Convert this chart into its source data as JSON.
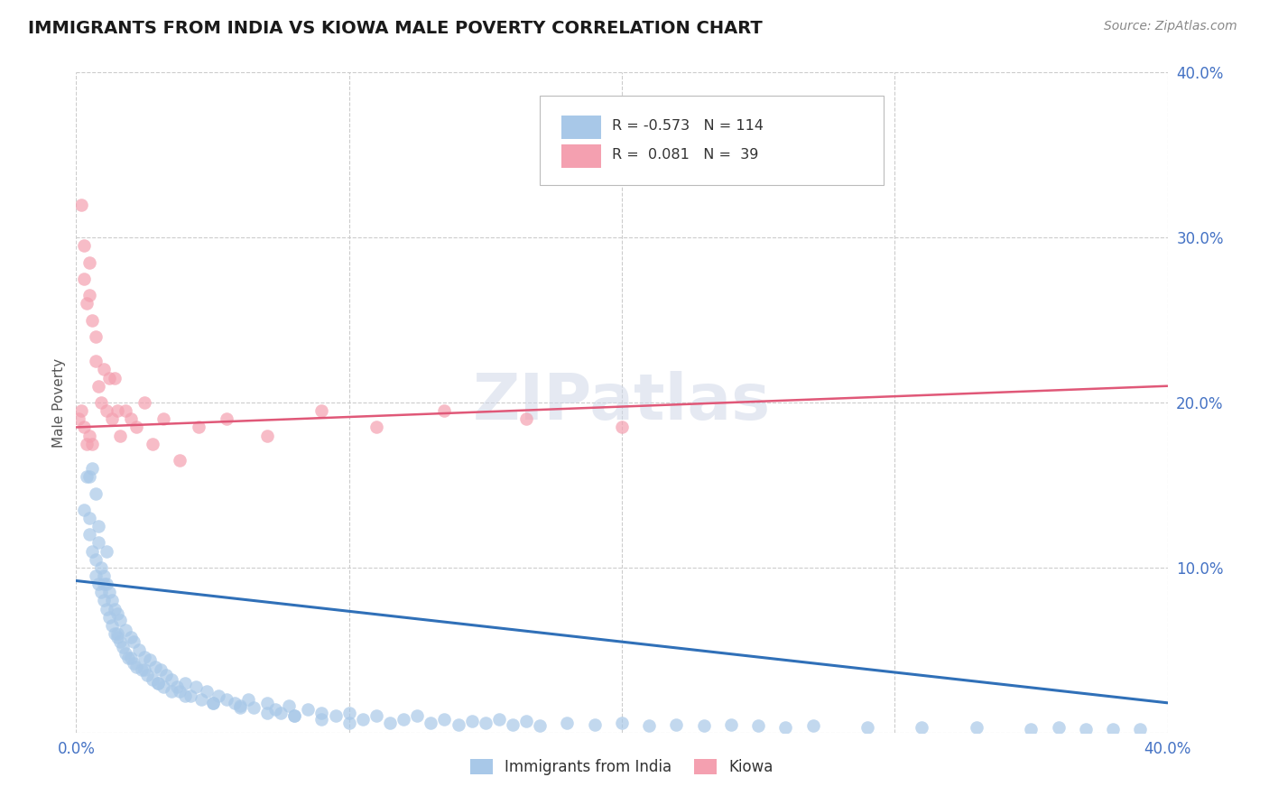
{
  "title": "IMMIGRANTS FROM INDIA VS KIOWA MALE POVERTY CORRELATION CHART",
  "source": "Source: ZipAtlas.com",
  "ylabel_label": "Male Poverty",
  "xlim": [
    0.0,
    0.4
  ],
  "ylim": [
    0.0,
    0.4
  ],
  "color_india": "#a8c8e8",
  "color_kiowa": "#f4a0b0",
  "line_color_india": "#3070b8",
  "line_color_kiowa": "#e05878",
  "background_color": "#ffffff",
  "india_line_start_y": 0.092,
  "india_line_end_y": 0.018,
  "kiowa_line_start_y": 0.185,
  "kiowa_line_end_y": 0.21,
  "india_scatter_x": [
    0.003,
    0.004,
    0.005,
    0.005,
    0.006,
    0.006,
    0.007,
    0.007,
    0.007,
    0.008,
    0.008,
    0.008,
    0.009,
    0.009,
    0.01,
    0.01,
    0.011,
    0.011,
    0.011,
    0.012,
    0.012,
    0.013,
    0.013,
    0.014,
    0.014,
    0.015,
    0.015,
    0.016,
    0.016,
    0.017,
    0.018,
    0.018,
    0.019,
    0.02,
    0.021,
    0.021,
    0.022,
    0.023,
    0.024,
    0.025,
    0.026,
    0.027,
    0.028,
    0.029,
    0.03,
    0.031,
    0.032,
    0.033,
    0.035,
    0.037,
    0.038,
    0.04,
    0.042,
    0.044,
    0.046,
    0.048,
    0.05,
    0.052,
    0.055,
    0.058,
    0.06,
    0.063,
    0.065,
    0.07,
    0.073,
    0.075,
    0.078,
    0.08,
    0.085,
    0.09,
    0.095,
    0.1,
    0.105,
    0.11,
    0.115,
    0.12,
    0.125,
    0.13,
    0.135,
    0.14,
    0.145,
    0.15,
    0.155,
    0.16,
    0.165,
    0.17,
    0.18,
    0.19,
    0.2,
    0.21,
    0.22,
    0.23,
    0.24,
    0.25,
    0.26,
    0.27,
    0.29,
    0.31,
    0.33,
    0.35,
    0.36,
    0.37,
    0.38,
    0.39,
    0.005,
    0.01,
    0.015,
    0.02,
    0.025,
    0.03,
    0.035,
    0.04,
    0.05,
    0.06,
    0.07,
    0.08,
    0.09,
    0.1
  ],
  "india_scatter_y": [
    0.135,
    0.155,
    0.12,
    0.13,
    0.11,
    0.16,
    0.095,
    0.105,
    0.145,
    0.09,
    0.115,
    0.125,
    0.085,
    0.1,
    0.08,
    0.095,
    0.075,
    0.09,
    0.11,
    0.07,
    0.085,
    0.065,
    0.08,
    0.06,
    0.075,
    0.058,
    0.072,
    0.055,
    0.068,
    0.052,
    0.048,
    0.062,
    0.045,
    0.058,
    0.042,
    0.055,
    0.04,
    0.05,
    0.038,
    0.046,
    0.035,
    0.044,
    0.032,
    0.04,
    0.03,
    0.038,
    0.028,
    0.035,
    0.032,
    0.028,
    0.025,
    0.03,
    0.022,
    0.028,
    0.02,
    0.025,
    0.018,
    0.022,
    0.02,
    0.018,
    0.016,
    0.02,
    0.015,
    0.018,
    0.014,
    0.012,
    0.016,
    0.01,
    0.014,
    0.012,
    0.01,
    0.012,
    0.008,
    0.01,
    0.006,
    0.008,
    0.01,
    0.006,
    0.008,
    0.005,
    0.007,
    0.006,
    0.008,
    0.005,
    0.007,
    0.004,
    0.006,
    0.005,
    0.006,
    0.004,
    0.005,
    0.004,
    0.005,
    0.004,
    0.003,
    0.004,
    0.003,
    0.003,
    0.003,
    0.002,
    0.003,
    0.002,
    0.002,
    0.002,
    0.155,
    0.09,
    0.06,
    0.045,
    0.038,
    0.03,
    0.025,
    0.022,
    0.018,
    0.015,
    0.012,
    0.01,
    0.008,
    0.006
  ],
  "kiowa_scatter_x": [
    0.001,
    0.002,
    0.002,
    0.003,
    0.003,
    0.003,
    0.004,
    0.004,
    0.005,
    0.005,
    0.005,
    0.006,
    0.006,
    0.007,
    0.007,
    0.008,
    0.009,
    0.01,
    0.011,
    0.012,
    0.013,
    0.014,
    0.015,
    0.016,
    0.018,
    0.02,
    0.022,
    0.025,
    0.028,
    0.032,
    0.038,
    0.045,
    0.055,
    0.07,
    0.09,
    0.11,
    0.135,
    0.165,
    0.2
  ],
  "kiowa_scatter_y": [
    0.19,
    0.195,
    0.32,
    0.295,
    0.275,
    0.185,
    0.26,
    0.175,
    0.285,
    0.265,
    0.18,
    0.25,
    0.175,
    0.24,
    0.225,
    0.21,
    0.2,
    0.22,
    0.195,
    0.215,
    0.19,
    0.215,
    0.195,
    0.18,
    0.195,
    0.19,
    0.185,
    0.2,
    0.175,
    0.19,
    0.165,
    0.185,
    0.19,
    0.18,
    0.195,
    0.185,
    0.195,
    0.19,
    0.185
  ]
}
